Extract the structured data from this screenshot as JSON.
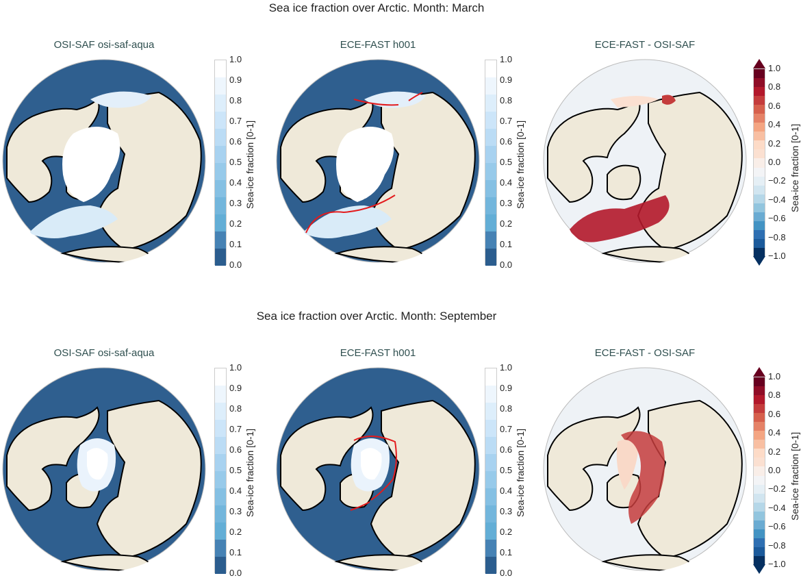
{
  "chart_data": [
    {
      "type": "heatmap",
      "row_title": "Sea ice fraction over Arctic. Month: March",
      "panels": [
        {
          "title": "OSI-SAF osi-saf-aqua",
          "projection": "north-polar orthographic",
          "colorbar": {
            "label": "Sea-ice fraction [0-1]",
            "range": [
              0.0,
              1.0
            ],
            "ticks": [
              "0.0",
              "0.1",
              "0.2",
              "0.3",
              "0.4",
              "0.5",
              "0.6",
              "0.7",
              "0.8",
              "0.9",
              "1.0"
            ],
            "cmap": "Blues_r"
          }
        },
        {
          "title": "ECE-FAST h001",
          "projection": "north-polar orthographic",
          "contour": "red 0.15 edge from OSI-SAF",
          "colorbar": {
            "label": "Sea-ice fraction [0-1]",
            "range": [
              0.0,
              1.0
            ],
            "ticks": [
              "0.0",
              "0.1",
              "0.2",
              "0.3",
              "0.4",
              "0.5",
              "0.6",
              "0.7",
              "0.8",
              "0.9",
              "1.0"
            ],
            "cmap": "Blues_r"
          }
        },
        {
          "title": "ECE-FAST -  OSI-SAF",
          "projection": "north-polar orthographic",
          "colorbar": {
            "label": "Sea-ice fraction [0-1]",
            "range": [
              -1.0,
              1.0
            ],
            "extend": "both",
            "ticks": [
              "−1.0",
              "−0.8",
              "−0.6",
              "−0.4",
              "−0.2",
              "0.0",
              "0.2",
              "0.4",
              "0.6",
              "0.8",
              "1.0"
            ],
            "cmap": "RdBu_r"
          }
        }
      ]
    },
    {
      "type": "heatmap",
      "row_title": "Sea ice fraction over Arctic. Month: September",
      "panels": [
        {
          "title": "OSI-SAF osi-saf-aqua",
          "projection": "north-polar orthographic",
          "colorbar": {
            "label": "Sea-ice fraction [0-1]",
            "range": [
              0.0,
              1.0
            ],
            "ticks": [
              "0.0",
              "0.1",
              "0.2",
              "0.3",
              "0.4",
              "0.5",
              "0.6",
              "0.7",
              "0.8",
              "0.9",
              "1.0"
            ],
            "cmap": "Blues_r"
          }
        },
        {
          "title": "ECE-FAST h001",
          "projection": "north-polar orthographic",
          "contour": "red 0.15 edge from OSI-SAF",
          "colorbar": {
            "label": "Sea-ice fraction [0-1]",
            "range": [
              0.0,
              1.0
            ],
            "ticks": [
              "0.0",
              "0.1",
              "0.2",
              "0.3",
              "0.4",
              "0.5",
              "0.6",
              "0.7",
              "0.8",
              "0.9",
              "1.0"
            ],
            "cmap": "Blues_r"
          }
        },
        {
          "title": "ECE-FAST -  OSI-SAF",
          "projection": "north-polar orthographic",
          "colorbar": {
            "label": "Sea-ice fraction [0-1]",
            "range": [
              -1.0,
              1.0
            ],
            "extend": "both",
            "ticks": [
              "−1.0",
              "−0.8",
              "−0.6",
              "−0.4",
              "−0.2",
              "0.0",
              "0.2",
              "0.4",
              "0.6",
              "0.8",
              "1.0"
            ],
            "cmap": "RdBu_r"
          }
        }
      ]
    }
  ],
  "colors": {
    "ocean_open": "#2f5f8f",
    "land": "#efe9d9",
    "ice": "#ffffff",
    "diff_neutral": "#eef2f6",
    "diff_pos": "#b2182b",
    "contour": "#e31a1c",
    "title_teal": "#2f4f4f"
  }
}
